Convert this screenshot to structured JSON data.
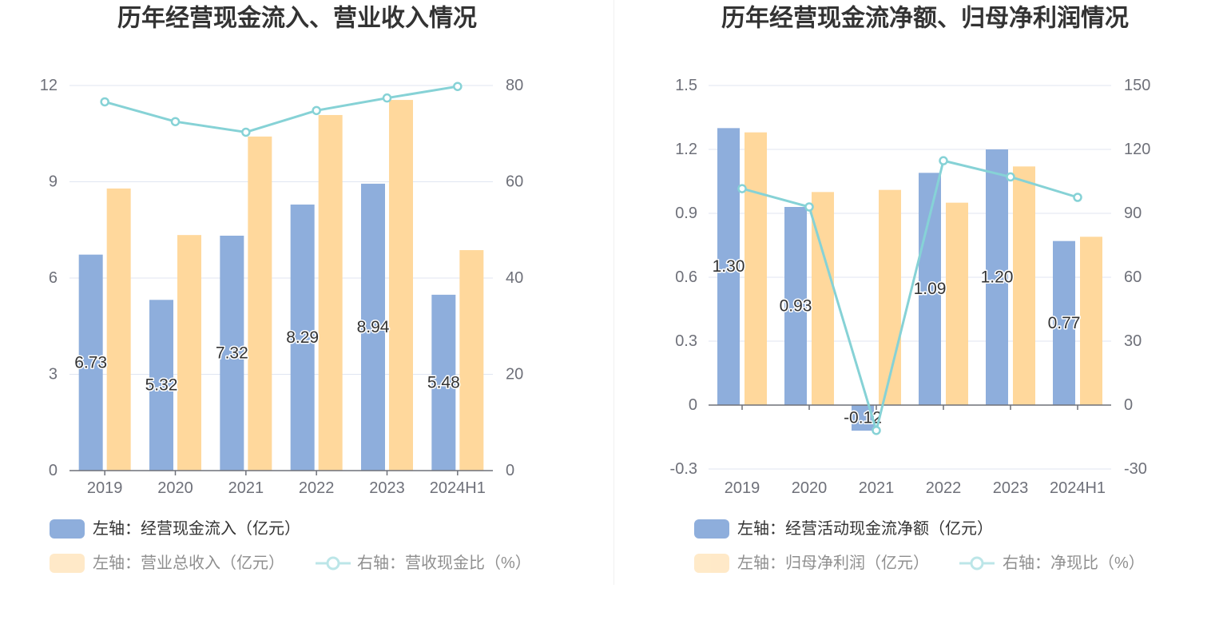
{
  "chart_data": [
    {
      "type": "bar",
      "title": "历年经营现金流入、营业收入情况",
      "categories": [
        "2019",
        "2020",
        "2021",
        "2022",
        "2023",
        "2024H1"
      ],
      "y_left": {
        "range": [
          0,
          12
        ],
        "ticks": [
          0,
          3,
          6,
          9,
          12
        ]
      },
      "y_right": {
        "range": [
          0,
          80
        ],
        "ticks": [
          0,
          20,
          40,
          60,
          80
        ]
      },
      "grid": true,
      "legend_position": "bottom-left",
      "series": [
        {
          "name": "左轴：经营现金流入（亿元）",
          "type": "bar",
          "axis": "left",
          "color": "#8eaedc",
          "values": [
            6.73,
            5.32,
            7.32,
            8.29,
            8.94,
            5.48
          ],
          "labels": [
            "6.73",
            "5.32",
            "7.32",
            "8.29",
            "8.94",
            "5.48"
          ]
        },
        {
          "name": "左轴：营业总收入（亿元）",
          "type": "bar",
          "axis": "left",
          "color": "#ffd89c",
          "values": [
            8.79,
            7.34,
            10.41,
            11.08,
            11.55,
            6.87
          ]
        },
        {
          "name": "右轴：营收现金比（%）",
          "type": "line",
          "axis": "right",
          "color": "#86d2d6",
          "values": [
            76.6,
            72.5,
            70.3,
            74.8,
            77.4,
            79.8
          ]
        }
      ]
    },
    {
      "type": "bar",
      "title": "历年经营现金流净额、归母净利润情况",
      "categories": [
        "2019",
        "2020",
        "2021",
        "2022",
        "2023",
        "2024H1"
      ],
      "y_left": {
        "range": [
          -0.3,
          1.5
        ],
        "ticks": [
          -0.3,
          0,
          0.3,
          0.6,
          0.9,
          1.2,
          1.5
        ]
      },
      "y_right": {
        "range": [
          -30,
          150
        ],
        "ticks": [
          -30,
          0,
          30,
          60,
          90,
          120,
          150
        ]
      },
      "grid": true,
      "legend_position": "bottom-left",
      "series": [
        {
          "name": "左轴：经营活动现金流净额（亿元）",
          "type": "bar",
          "axis": "left",
          "color": "#8eaedc",
          "values": [
            1.3,
            0.93,
            -0.12,
            1.09,
            1.2,
            0.77
          ],
          "labels": [
            "1.30",
            "0.93",
            "-0.12",
            "1.09",
            "1.20",
            "0.77"
          ]
        },
        {
          "name": "左轴：归母净利润（亿元）",
          "type": "bar",
          "axis": "left",
          "color": "#ffd89c",
          "values": [
            1.28,
            1.0,
            1.01,
            0.95,
            1.12,
            0.79
          ]
        },
        {
          "name": "右轴：净现比（%）",
          "type": "line",
          "axis": "right",
          "color": "#86d2d6",
          "values": [
            101.6,
            93.0,
            -11.9,
            114.7,
            107.1,
            97.5
          ]
        }
      ]
    }
  ]
}
